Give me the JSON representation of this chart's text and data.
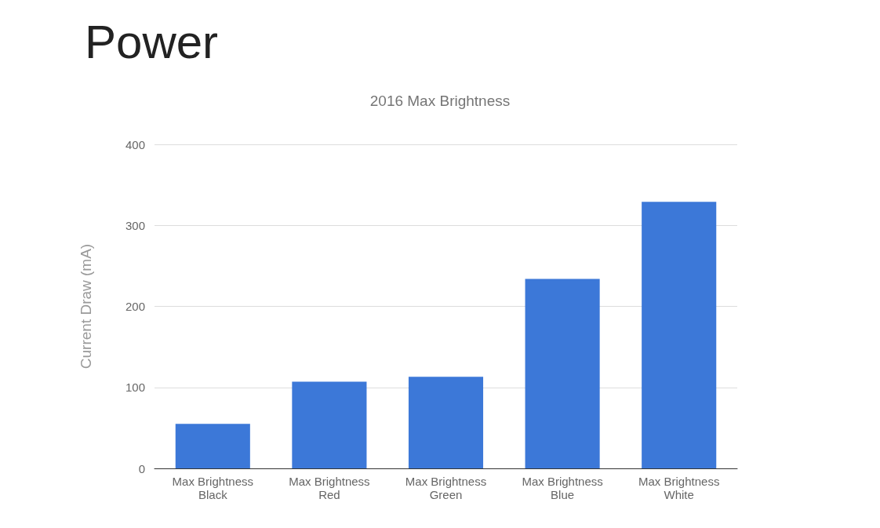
{
  "chart_data": {
    "type": "bar",
    "title": "Power",
    "subtitle": "2016 Max Brightness",
    "ylabel": "Current Draw (mA)",
    "categories": [
      "Max Brightness\nBlack",
      "Max Brightness\nRed",
      "Max Brightness\nGreen",
      "Max Brightness\nBlue",
      "Max Brightness\nWhite"
    ],
    "values": [
      55,
      107,
      113,
      234,
      329
    ],
    "color": "#3c78d8",
    "ylim": [
      0,
      400
    ],
    "yticks": [
      0,
      100,
      200,
      300,
      400
    ],
    "grid": "y"
  }
}
